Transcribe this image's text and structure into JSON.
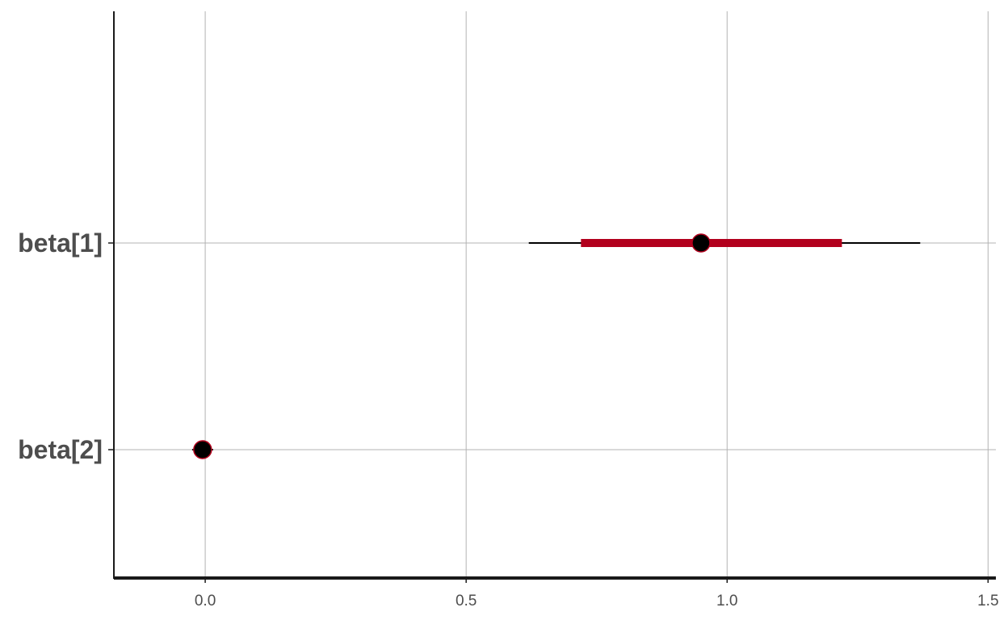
{
  "chart_data": {
    "type": "interval",
    "title": "",
    "xlabel": "",
    "ylabel": "",
    "xlim": [
      -0.175,
      1.515
    ],
    "x_ticks": [
      0.0,
      0.5,
      1.0,
      1.5
    ],
    "x_tick_labels": [
      "0.0",
      "0.5",
      "1.0",
      "1.5"
    ],
    "grid": true,
    "legend": "none",
    "parameters": [
      {
        "label": "beta[1]",
        "point": 0.95,
        "inner_interval": [
          0.72,
          1.22
        ],
        "outer_interval": [
          0.62,
          1.37
        ]
      },
      {
        "label": "beta[2]",
        "point": -0.005,
        "inner_interval": [
          -0.02,
          0.01
        ],
        "outer_interval": [
          -0.025,
          0.015
        ]
      }
    ],
    "colors": {
      "inner_interval": "#b2001d",
      "outer_interval": "#000000",
      "point_fill": "#000000",
      "point_outline": "#b2001d",
      "grid": "#b3b3b3",
      "axis": "#1a1a1a"
    }
  }
}
